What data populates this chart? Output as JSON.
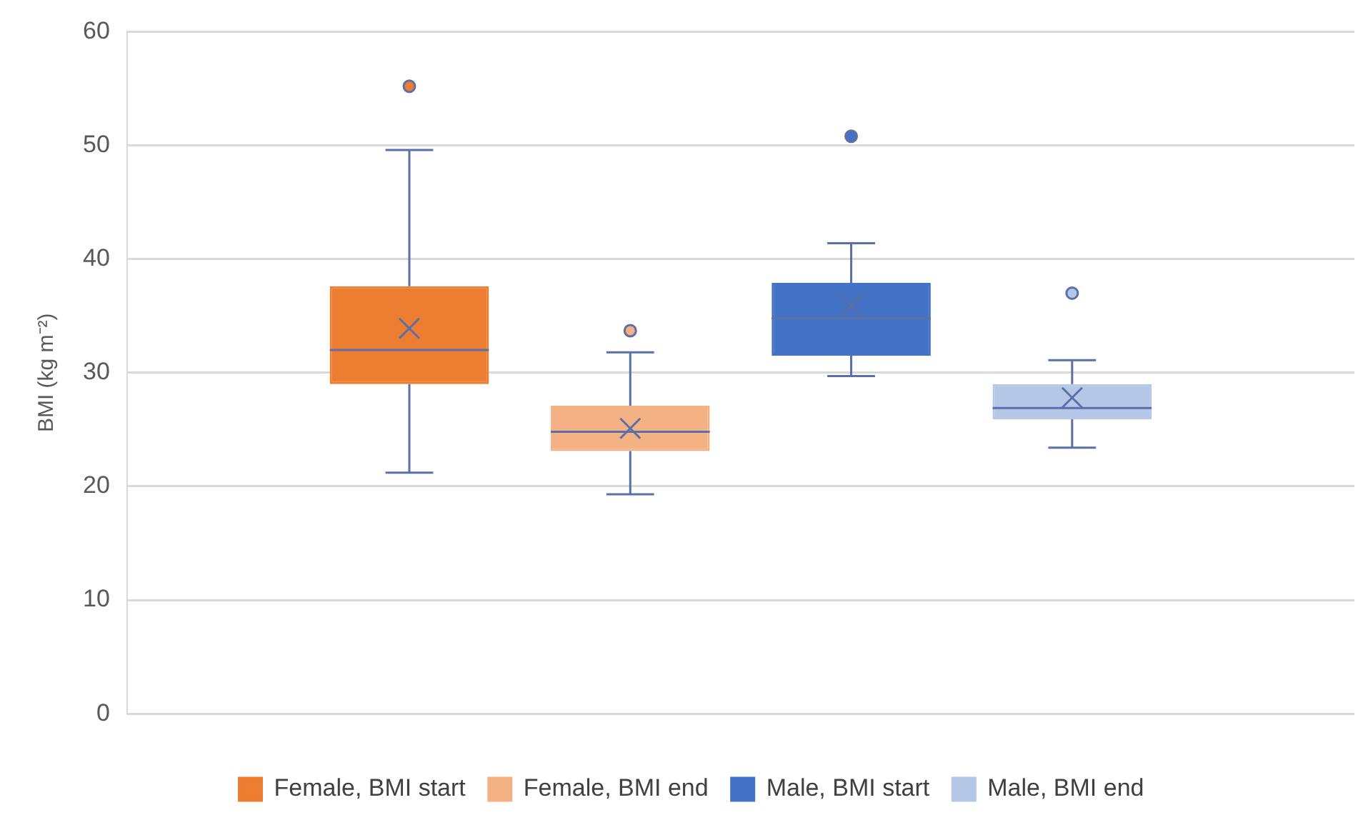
{
  "chart_data": {
    "type": "box",
    "ylabel": "BMI (kg m⁻²)",
    "categories": [
      null
    ],
    "series": [
      {
        "name": "Female, BMI start",
        "color": "#ed7d31",
        "boxes": [
          {
            "low": 21.2,
            "q1": 29.0,
            "median": 32.0,
            "q3": 37.6,
            "high": 49.6,
            "mean": 33.9,
            "outliers": [
              55.2
            ]
          }
        ]
      },
      {
        "name": "Female, BMI end",
        "color": "#f4b183",
        "boxes": [
          {
            "low": 19.3,
            "q1": 23.1,
            "median": 24.8,
            "q3": 27.1,
            "high": 31.8,
            "mean": 25.1,
            "outliers": [
              33.7
            ]
          }
        ]
      },
      {
        "name": "Male, BMI start",
        "color": "#4472c4",
        "boxes": [
          {
            "low": 29.7,
            "q1": 31.5,
            "median": 34.8,
            "q3": 37.9,
            "high": 41.4,
            "mean": 35.9,
            "outliers": [
              50.8
            ]
          }
        ]
      },
      {
        "name": "Male, BMI end",
        "color": "#b4c7e7",
        "boxes": [
          {
            "low": 23.4,
            "q1": 25.9,
            "median": 26.9,
            "q3": 29.0,
            "high": 31.1,
            "mean": 27.8,
            "outliers": [
              37.0
            ]
          }
        ]
      }
    ],
    "ylim": [
      0,
      60
    ],
    "yticks": [
      0,
      10,
      20,
      30,
      40,
      50,
      60
    ],
    "grid": "y",
    "legend": "bottom"
  }
}
